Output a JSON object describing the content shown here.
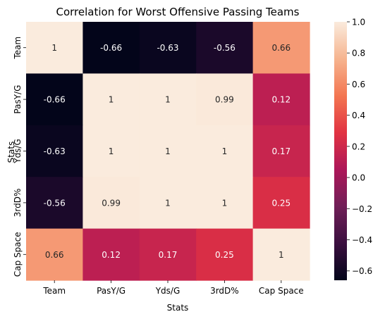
{
  "chart_data": {
    "type": "heatmap",
    "title": "Correlation for Worst Offensive Passing Teams",
    "xlabel": "Stats",
    "ylabel": "Stats",
    "x_categories": [
      "Team",
      "PasY/G",
      "Yds/G",
      "3rdD%",
      "Cap Space"
    ],
    "y_categories": [
      "Team",
      "PasY/G",
      "Yds/G",
      "3rdD%",
      "Cap Space"
    ],
    "values": [
      [
        1,
        -0.66,
        -0.63,
        -0.56,
        0.66
      ],
      [
        -0.66,
        1,
        1,
        0.99,
        0.12
      ],
      [
        -0.63,
        1,
        1,
        1,
        0.17
      ],
      [
        -0.56,
        0.99,
        1,
        1,
        0.25
      ],
      [
        0.66,
        0.12,
        0.17,
        0.25,
        1
      ]
    ],
    "cell_labels": [
      [
        "1",
        "-0.66",
        "-0.63",
        "-0.56",
        "0.66"
      ],
      [
        "-0.66",
        "1",
        "1",
        "0.99",
        "0.12"
      ],
      [
        "-0.63",
        "1",
        "1",
        "1",
        "0.17"
      ],
      [
        "-0.56",
        "0.99",
        "1",
        "1",
        "0.25"
      ],
      [
        "0.66",
        "0.12",
        "0.17",
        "0.25",
        "1"
      ]
    ],
    "colorbar": {
      "range": [
        -0.66,
        1.0
      ],
      "ticks": [
        -0.6,
        -0.4,
        -0.2,
        0.0,
        0.2,
        0.4,
        0.6,
        0.8,
        1.0
      ],
      "tick_labels": [
        "−0.6",
        "−0.4",
        "−0.2",
        "0.0",
        "0.2",
        "0.4",
        "0.6",
        "0.8",
        "1.0"
      ],
      "colormap": "rocket",
      "colormap_stops": [
        "#03051a",
        "#3b0f3f",
        "#701f57",
        "#ad1759",
        "#e13342",
        "#f37651",
        "#f6b48f",
        "#faebdd"
      ]
    }
  }
}
